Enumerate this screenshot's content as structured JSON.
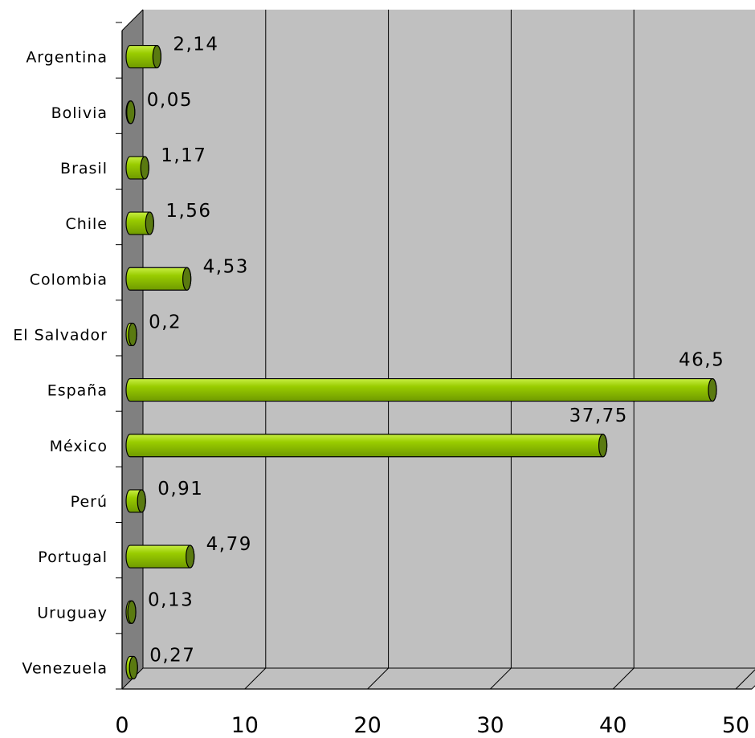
{
  "chart_data": {
    "type": "bar",
    "orientation": "horizontal",
    "style": "3d-cylinder",
    "categories": [
      "Argentina",
      "Bolivia",
      "Brasil",
      "Chile",
      "Colombia",
      "El Salvador",
      "España",
      "México",
      "Perú",
      "Portugal",
      "Uruguay",
      "Venezuela"
    ],
    "values": [
      2.14,
      0.05,
      1.17,
      1.56,
      4.53,
      0.2,
      46.5,
      37.75,
      0.91,
      4.79,
      0.13,
      0.27
    ],
    "data_labels": [
      "2,14",
      "0,05",
      "1,17",
      "1,56",
      "4,53",
      "0,2",
      "46,5",
      "37,75",
      "0,91",
      "4,79",
      "0,13",
      "0,27"
    ],
    "x_ticks": [
      "0",
      "10",
      "20",
      "30",
      "40",
      "50"
    ],
    "xlim": [
      0,
      50
    ],
    "title": "",
    "xlabel": "",
    "ylabel": "",
    "grid": "vertical",
    "legend": "none",
    "colors": {
      "bar_fill": "#99cc00",
      "bar_highlight": "#c8ee44",
      "bar_shadow": "#6f9a00",
      "bar_cap": "#5a7a10",
      "wall": "#c0c0c0",
      "side_wall": "#808080",
      "floor": "#c0c0c0"
    }
  }
}
